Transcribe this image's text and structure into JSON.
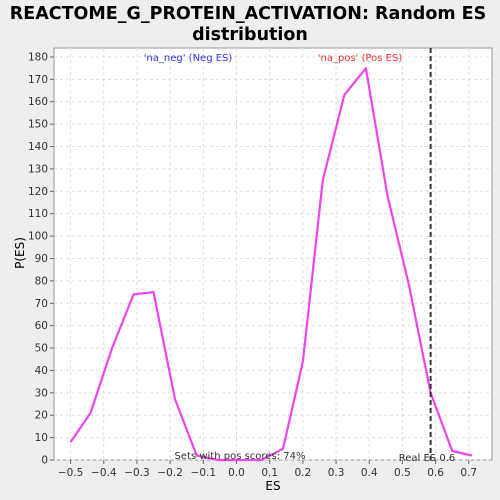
{
  "chart_data": {
    "type": "line",
    "title": [
      "REACTOME_G_PROTEIN_ACTIVATION: Random ES",
      "distribution"
    ],
    "xlabel": "ES",
    "ylabel": "P(ES)",
    "xlim": [
      -0.55,
      0.77
    ],
    "ylim": [
      0,
      184
    ],
    "xticks": [
      -0.5,
      -0.4,
      -0.3,
      -0.2,
      -0.1,
      0.0,
      0.1,
      0.2,
      0.3,
      0.4,
      0.5,
      0.6,
      0.7
    ],
    "xtick_labels": [
      "−0.5",
      "−0.4",
      "−0.3",
      "−0.2",
      "−0.1",
      "0.0",
      "0.1",
      "0.2",
      "0.3",
      "0.4",
      "0.5",
      "0.6",
      "0.7"
    ],
    "yticks": [
      0,
      10,
      20,
      30,
      40,
      50,
      60,
      70,
      80,
      90,
      100,
      110,
      120,
      130,
      140,
      150,
      160,
      170,
      180
    ],
    "grid": true,
    "series": [
      {
        "color": "#ee44ee",
        "x": [
          -0.5,
          -0.44,
          -0.375,
          -0.31,
          -0.25,
          -0.185,
          -0.12,
          -0.055,
          0.01,
          0.075,
          0.14,
          0.2,
          0.26,
          0.325,
          0.39,
          0.455,
          0.52,
          0.585,
          0.65,
          0.71
        ],
        "y": [
          8,
          21,
          50,
          74,
          75,
          27,
          2,
          0,
          0,
          0,
          5,
          44,
          125,
          163,
          175,
          118,
          78,
          30,
          4,
          2
        ]
      }
    ],
    "vline": {
      "x": 0.585,
      "label": "Real ES 0.6",
      "color": "#333333"
    },
    "annotations": {
      "neg_label": "'na_neg' (Neg ES)",
      "pos_label": "'na_pos' (Pos ES)",
      "sets_label": "Sets with pos scores: 74%",
      "neg_color": "#3333ee",
      "pos_color": "#ee3333"
    }
  }
}
